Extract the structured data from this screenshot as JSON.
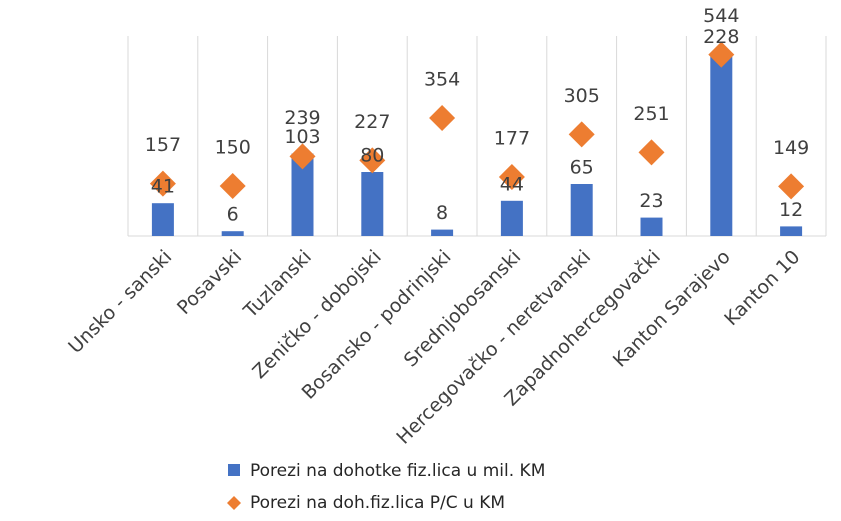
{
  "chart_data": {
    "type": "bar_diamond",
    "categories": [
      "Unsko - sanski",
      "Posavski",
      "Tuzlanski",
      "Zeničko - dobojski",
      "Bosansko - podrinjski",
      "Srednjobosanski",
      "Hercegovačko - neretvanski",
      "Zapadnohercegovački",
      "Kanton Sarajevo",
      "Kanton 10"
    ],
    "series": [
      {
        "name": "Porezi na dohotke fiz.lica u mil. KM",
        "color": "#4472c4",
        "values": [
          41,
          6,
          103,
          80,
          8,
          44,
          65,
          23,
          228,
          12
        ]
      },
      {
        "name": "Porezi na doh.fiz.lica P/C u KM",
        "color": "#ed7d31",
        "axis": "y2",
        "values": [
          157,
          150,
          239,
          227,
          354,
          177,
          305,
          251,
          544,
          149
        ]
      }
    ],
    "ylim": [
      0,
      250
    ],
    "y2lim": [
      0,
      600
    ]
  }
}
